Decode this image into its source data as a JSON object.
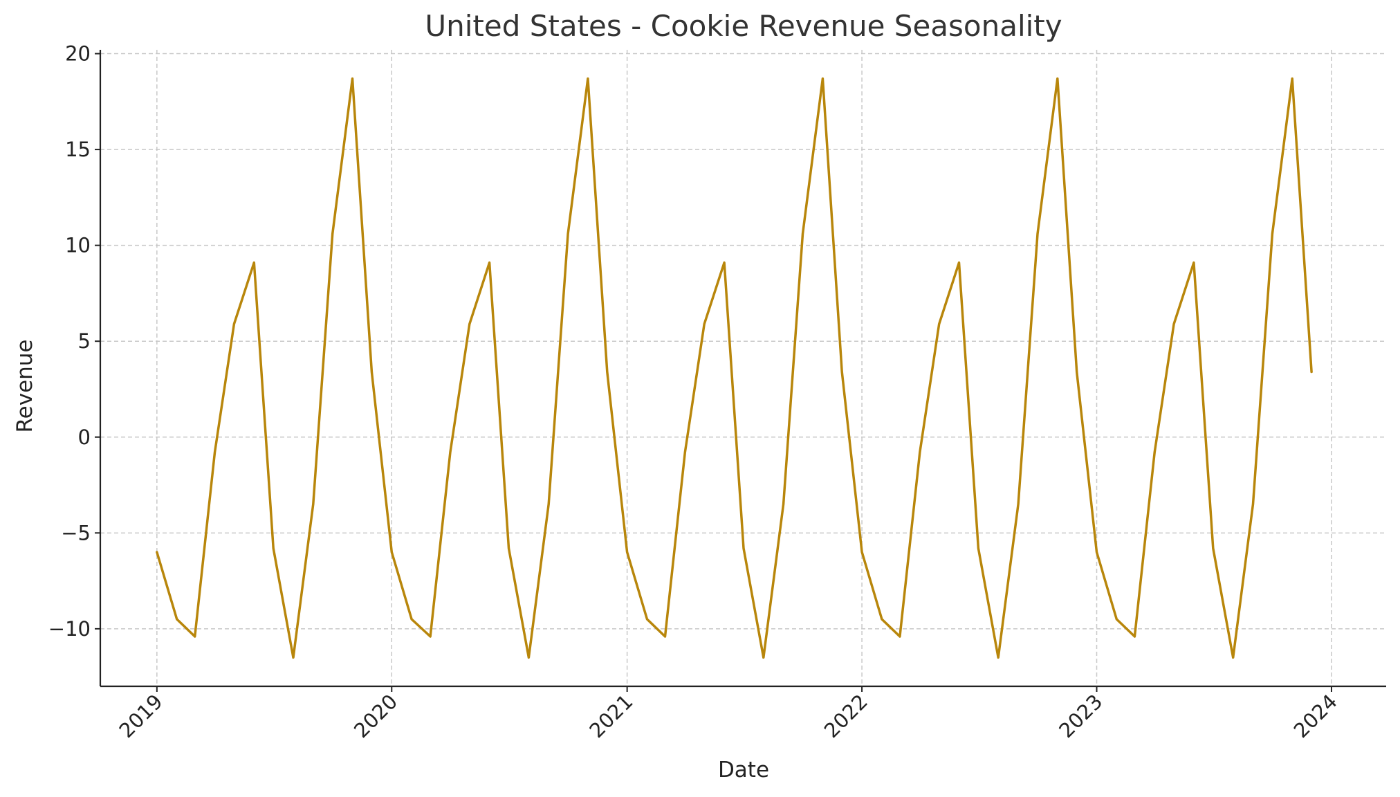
{
  "chart_data": {
    "type": "line",
    "title": "United States - Cookie Revenue Seasonality",
    "xlabel": "Date",
    "ylabel": "Revenue",
    "x_axis_type": "date",
    "x_range": [
      "2018-10-05",
      "2024-03-26"
    ],
    "x_ticks": [
      "2019",
      "2020",
      "2021",
      "2022",
      "2023",
      "2024"
    ],
    "y_range": [
      -13,
      20.2
    ],
    "y_ticks": [
      "20",
      "15",
      "10",
      "5",
      "0",
      "−5",
      "−10"
    ],
    "y_tick_values": [
      20,
      15,
      10,
      5,
      0,
      -5,
      -10
    ],
    "grid": true,
    "legend": "none",
    "line_color": "#b8860b",
    "series": [
      {
        "x": [
          "2019-01-01",
          "2019-02-01",
          "2019-03-01",
          "2019-04-01",
          "2019-05-01",
          "2019-06-01",
          "2019-07-01",
          "2019-08-01",
          "2019-09-01",
          "2019-10-01",
          "2019-11-01",
          "2019-12-01",
          "2020-01-01",
          "2020-02-01",
          "2020-03-01",
          "2020-04-01",
          "2020-05-01",
          "2020-06-01",
          "2020-07-01",
          "2020-08-01",
          "2020-09-01",
          "2020-10-01",
          "2020-11-01",
          "2020-12-01",
          "2021-01-01",
          "2021-02-01",
          "2021-03-01",
          "2021-04-01",
          "2021-05-01",
          "2021-06-01",
          "2021-07-01",
          "2021-08-01",
          "2021-09-01",
          "2021-10-01",
          "2021-11-01",
          "2021-12-01",
          "2022-01-01",
          "2022-02-01",
          "2022-03-01",
          "2022-04-01",
          "2022-05-01",
          "2022-06-01",
          "2022-07-01",
          "2022-08-01",
          "2022-09-01",
          "2022-10-01",
          "2022-11-01",
          "2022-12-01",
          "2023-01-01",
          "2023-02-01",
          "2023-03-01",
          "2023-04-01",
          "2023-05-01",
          "2023-06-01",
          "2023-07-01",
          "2023-08-01",
          "2023-09-01",
          "2023-10-01",
          "2023-11-01",
          "2023-12-01"
        ],
        "values": [
          -6.0,
          -9.5,
          -10.4,
          -0.8,
          5.9,
          9.1,
          -5.8,
          -11.5,
          -3.5,
          10.6,
          18.7,
          3.4,
          -6.0,
          -9.5,
          -10.4,
          -0.8,
          5.9,
          9.1,
          -5.8,
          -11.5,
          -3.5,
          10.6,
          18.7,
          3.4,
          -6.0,
          -9.5,
          -10.4,
          -0.8,
          5.9,
          9.1,
          -5.8,
          -11.5,
          -3.5,
          10.6,
          18.7,
          3.4,
          -6.0,
          -9.5,
          -10.4,
          -0.8,
          5.9,
          9.1,
          -5.8,
          -11.5,
          -3.5,
          10.6,
          18.7,
          3.4,
          -6.0,
          -9.5,
          -10.4,
          -0.8,
          5.9,
          9.1,
          -5.8,
          -11.5,
          -3.5,
          10.6,
          18.7,
          3.4
        ]
      }
    ]
  }
}
